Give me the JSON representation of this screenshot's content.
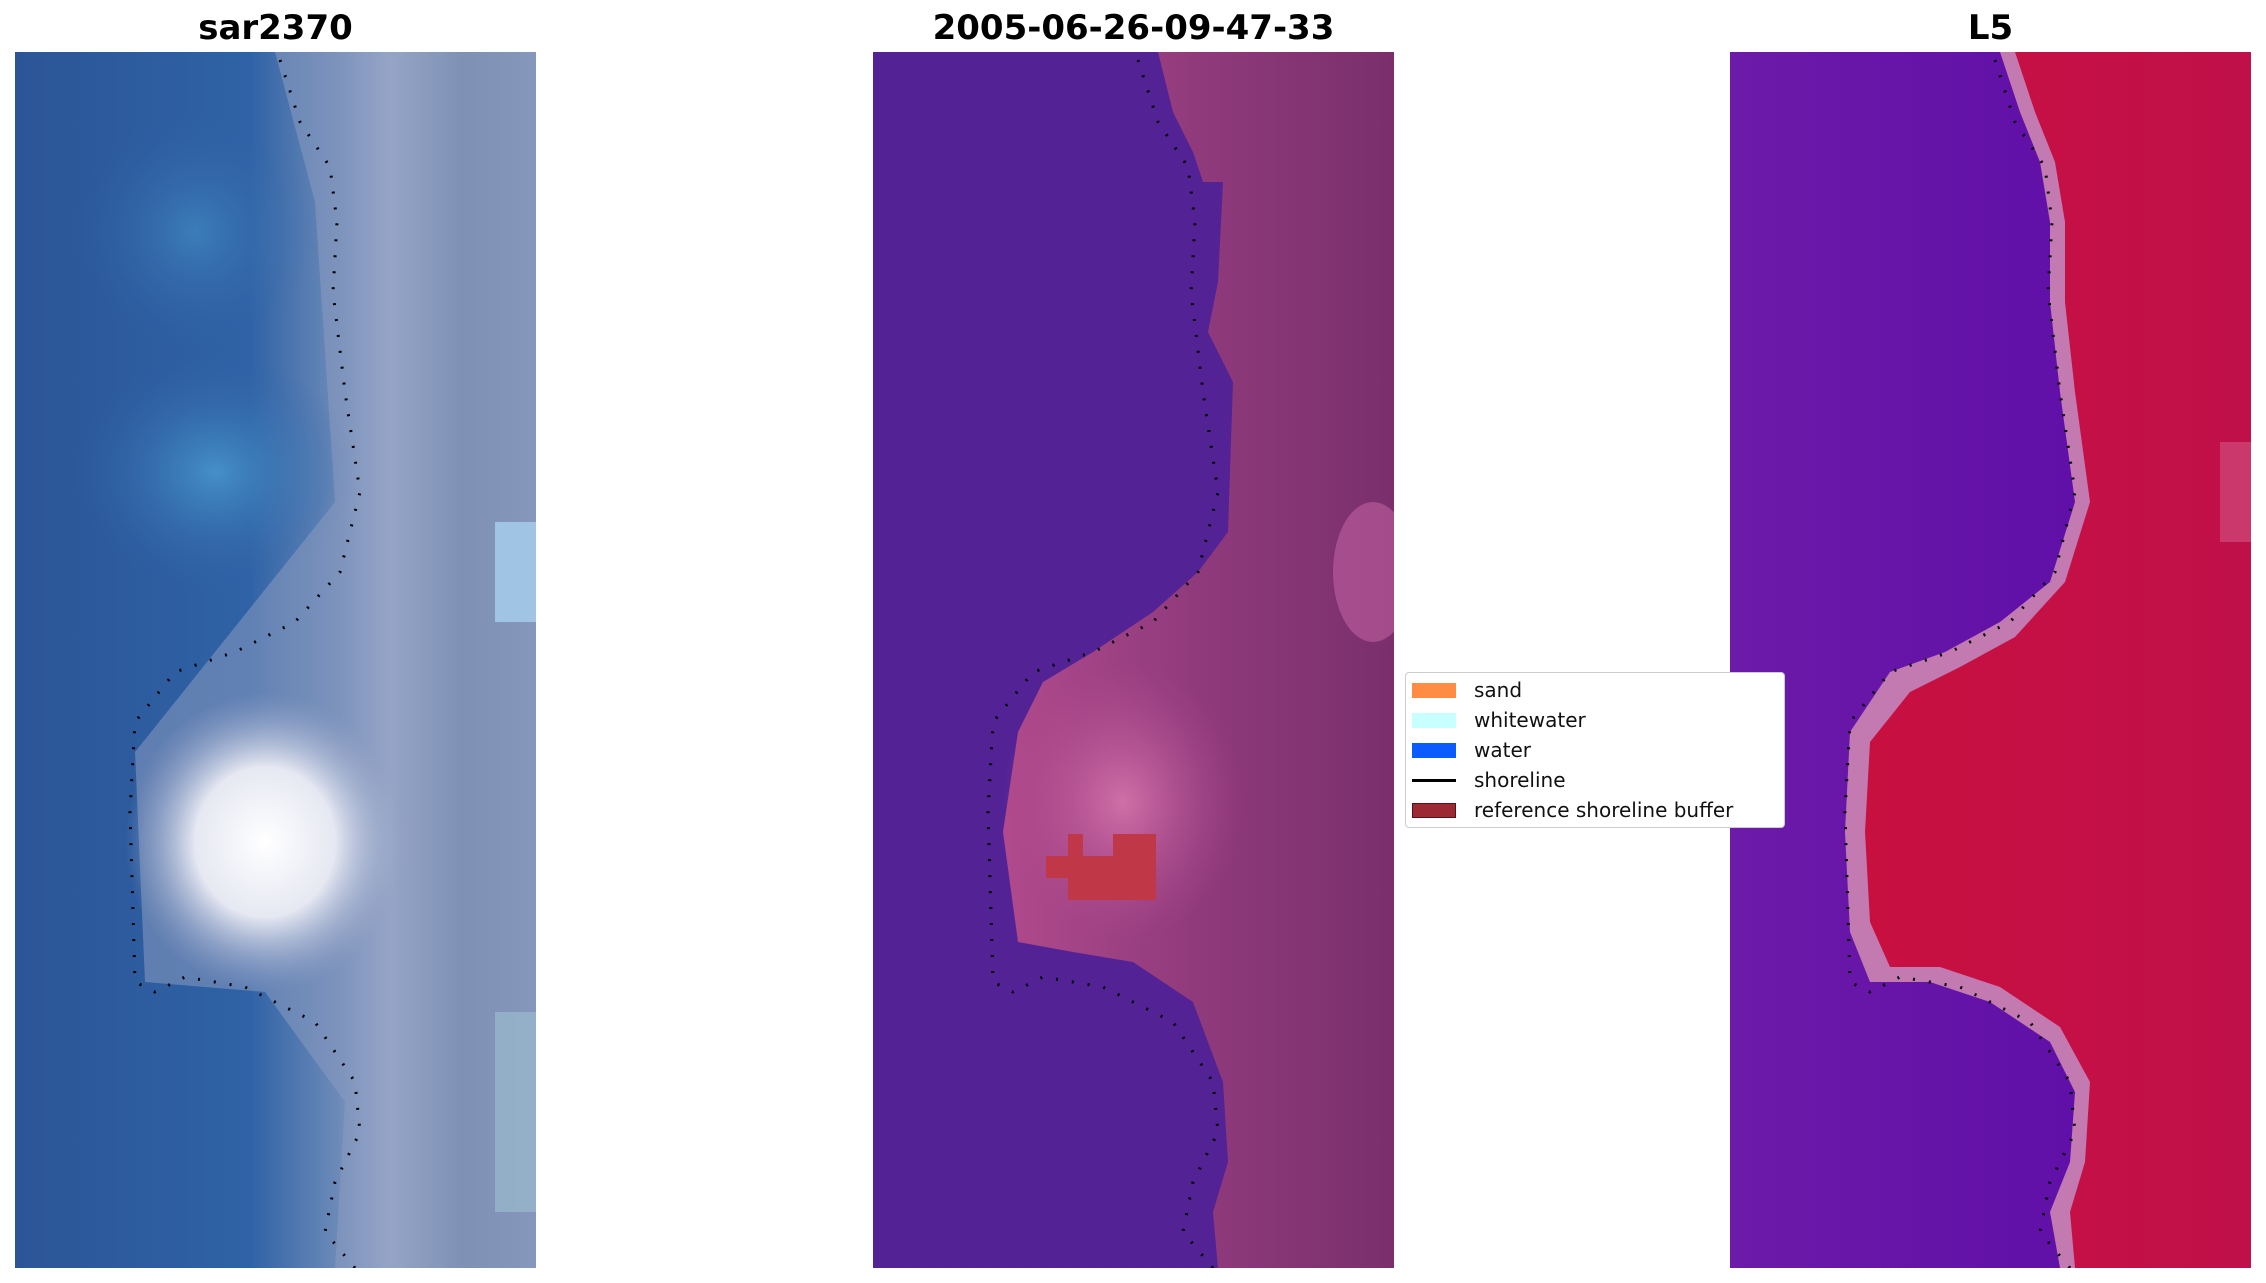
{
  "panels": [
    {
      "title": "sar2370",
      "kind": "rgb-image"
    },
    {
      "title": "2005-06-26-09-47-33",
      "kind": "classification-overlay"
    },
    {
      "title": "L5",
      "kind": "index-image"
    }
  ],
  "legend": {
    "items": [
      {
        "label": "sand",
        "color": "#ff8c42",
        "type": "patch"
      },
      {
        "label": "whitewater",
        "color": "#c8ffff",
        "type": "patch"
      },
      {
        "label": "water",
        "color": "#0a5cff",
        "type": "patch"
      },
      {
        "label": "shoreline",
        "color": "#000000",
        "type": "line"
      },
      {
        "label": "reference shoreline buffer",
        "color": "#9b2a35",
        "type": "patch"
      }
    ]
  },
  "colors": {
    "water_purple": "#532396",
    "sand_pink": "#c0508f",
    "index_red": "#c40a3c",
    "index_purple": "#6a14a8",
    "rgb_blue": "#2d5b9a",
    "rgb_grey": "#9aa4c0",
    "buffer_red": "#c03848"
  }
}
